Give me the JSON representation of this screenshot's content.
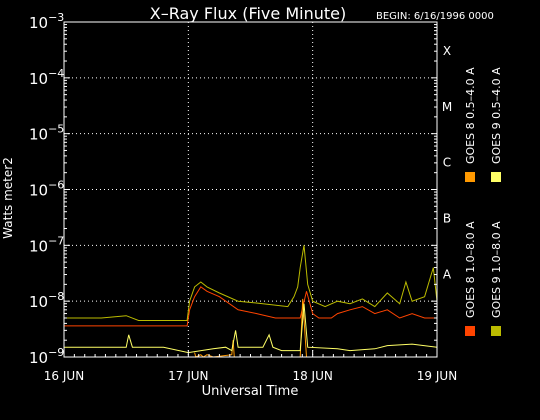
{
  "chart_data": {
    "type": "line",
    "title": "X–Ray Flux (Five Minute)",
    "begin_label": "BEGIN: 6/16/1996 0000",
    "xlabel": "Universal Time",
    "ylabel": "Watts meter2",
    "x_ticks": [
      {
        "day": 0,
        "label": "16 JUN"
      },
      {
        "day": 1,
        "label": "17 JUN"
      },
      {
        "day": 2,
        "label": "18 JUN"
      },
      {
        "day": 3,
        "label": "19 JUN"
      }
    ],
    "xlim": [
      0,
      3
    ],
    "ylim": [
      1e-09,
      0.001
    ],
    "yscale": "log",
    "y_ticks": [
      {
        "base": "10",
        "exp": "−3",
        "value": 0.001
      },
      {
        "base": "10",
        "exp": "−4",
        "value": 0.0001
      },
      {
        "base": "10",
        "exp": "−5",
        "value": 1e-05
      },
      {
        "base": "10",
        "exp": "−6",
        "value": 1e-06
      },
      {
        "base": "10",
        "exp": "−7",
        "value": 1e-07
      },
      {
        "base": "10",
        "exp": "−8",
        "value": 1e-08
      },
      {
        "base": "10",
        "exp": "−9",
        "value": 1e-09
      }
    ],
    "flare_classes": [
      {
        "label": "X",
        "value": 0.0001
      },
      {
        "label": "M",
        "value": 1e-05
      },
      {
        "label": "C",
        "value": 1e-06
      },
      {
        "label": "B",
        "value": 1e-07
      },
      {
        "label": "A",
        "value": 1e-08
      }
    ],
    "grid": true,
    "legend": [
      {
        "label": "GOES 8 1.0–8.0 A",
        "color": "#ff4400"
      },
      {
        "label": "GOES 8 0.5–4.0 A",
        "color": "#ff9900"
      },
      {
        "label": "GOES 9 1.0–8.0 A",
        "color": "#bbbb00"
      },
      {
        "label": "GOES 9 0.5–4.0 A",
        "color": "#ffff66"
      }
    ],
    "series": [
      {
        "color": "#ff4400",
        "x": [
          0,
          0.5,
          0.99,
          1.01,
          1.05,
          1.1,
          1.15,
          1.25,
          1.4,
          1.55,
          1.7,
          1.8,
          1.9,
          1.95,
          2.0,
          2.05,
          2.1,
          2.15,
          2.2,
          2.3,
          2.4,
          2.5,
          2.6,
          2.7,
          2.8,
          2.9,
          3.0
        ],
        "y": [
          3.6e-09,
          3.6e-09,
          3.6e-09,
          7e-09,
          1.2e-08,
          1.8e-08,
          1.5e-08,
          1.2e-08,
          7e-09,
          6e-09,
          5e-09,
          5e-09,
          5e-09,
          1.5e-08,
          6e-09,
          5e-09,
          5e-09,
          5e-09,
          6e-09,
          7e-09,
          8e-09,
          6e-09,
          7e-09,
          5e-09,
          6e-09,
          5e-09,
          5e-09
        ]
      },
      {
        "color": "#ff9900",
        "x": [
          1.05,
          1.06,
          1.1,
          1.12,
          1.15,
          1.2,
          1.35,
          1.36,
          1.37,
          1.9,
          1.92,
          1.95
        ],
        "y": [
          1.2e-09,
          1e-09,
          1.1e-09,
          1e-09,
          1.1e-09,
          1e-09,
          1.1e-09,
          2e-09,
          1e-09,
          1e-09,
          1.1e-08,
          1e-09
        ]
      },
      {
        "color": "#bbbb00",
        "x": [
          0,
          0.3,
          0.5,
          0.6,
          0.99,
          1.01,
          1.05,
          1.1,
          1.15,
          1.25,
          1.4,
          1.6,
          1.8,
          1.85,
          1.88,
          1.9,
          1.93,
          1.96,
          2.0,
          2.1,
          2.2,
          2.3,
          2.4,
          2.5,
          2.6,
          2.7,
          2.75,
          2.8,
          2.9,
          2.97,
          3.0
        ],
        "y": [
          5e-09,
          5e-09,
          5.5e-09,
          4.5e-09,
          4.5e-09,
          1e-08,
          1.8e-08,
          2.2e-08,
          1.8e-08,
          1.4e-08,
          1e-08,
          9e-09,
          8e-09,
          1.2e-08,
          1.8e-08,
          4e-08,
          1e-07,
          2e-08,
          1e-08,
          8e-09,
          1e-08,
          9e-09,
          1.1e-08,
          8e-09,
          1.4e-08,
          9e-09,
          2.2e-08,
          1e-08,
          1.2e-08,
          4e-08,
          1e-08
        ]
      },
      {
        "color": "#ffff66",
        "x": [
          0,
          0.4,
          0.5,
          0.52,
          0.55,
          0.8,
          1.0,
          1.2,
          1.3,
          1.35,
          1.38,
          1.4,
          1.6,
          1.65,
          1.68,
          1.75,
          1.9,
          1.93,
          1.96,
          2.2,
          2.3,
          2.5,
          2.6,
          2.8,
          3.0
        ],
        "y": [
          1.5e-09,
          1.5e-09,
          1.5e-09,
          2.5e-09,
          1.5e-09,
          1.5e-09,
          1.2e-09,
          1.4e-09,
          1.5e-09,
          1.3e-09,
          3e-09,
          1.5e-09,
          1.5e-09,
          2.5e-09,
          1.5e-09,
          1.3e-09,
          1.3e-09,
          9e-09,
          1.5e-09,
          1.4e-09,
          1.3e-09,
          1.4e-09,
          1.6e-09,
          1.7e-09,
          1.5e-09
        ]
      }
    ]
  }
}
